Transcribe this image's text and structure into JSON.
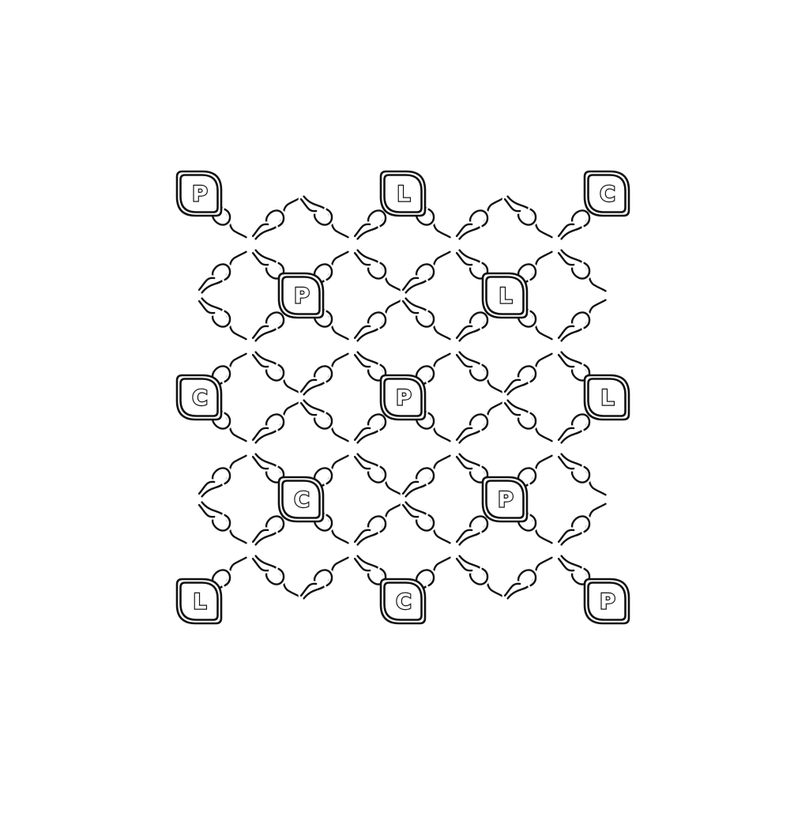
{
  "pattern": {
    "style": {
      "ink": "#111111",
      "paper": "#ffffff"
    },
    "tile_icon": "leaf-badge-icon",
    "knot_icon": "rope-knot-icon",
    "rows": [
      [
        "P",
        "",
        "L",
        "",
        "C"
      ],
      [
        "",
        "P",
        "",
        "L",
        ""
      ],
      [
        "C",
        "",
        "P",
        "",
        "L"
      ],
      [
        "",
        "C",
        "",
        "P",
        ""
      ],
      [
        "L",
        "",
        "C",
        "",
        "P"
      ]
    ]
  }
}
